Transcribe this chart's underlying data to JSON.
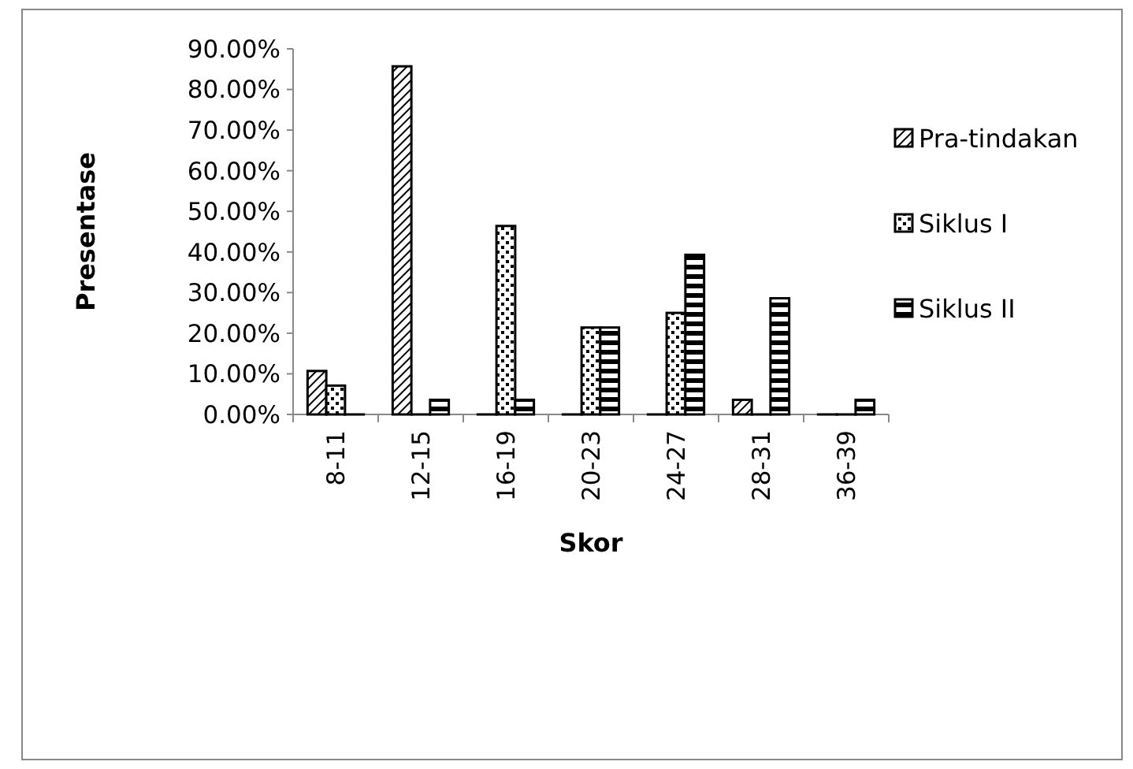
{
  "chart_data": {
    "type": "bar",
    "xlabel": "Skor",
    "ylabel": "Presentase",
    "categories": [
      "8-11",
      "12-15",
      "16-19",
      "20-23",
      "24-27",
      "28-31",
      "36-39"
    ],
    "series": [
      {
        "name": "Pra-tindakan",
        "color": "#000000",
        "values": [
          10.7,
          85.7,
          0,
          0,
          0,
          3.6,
          0
        ]
      },
      {
        "name": "Siklus I",
        "color": "#000000",
        "values": [
          7.1,
          0,
          46.4,
          21.4,
          25,
          0,
          0
        ]
      },
      {
        "name": "Siklus II",
        "color": "#000000",
        "values": [
          0,
          3.6,
          3.6,
          21.4,
          39.3,
          28.6,
          3.6
        ]
      }
    ],
    "ylim": [
      0,
      90
    ],
    "yticks": [
      {
        "value": 0,
        "label": "0.00%"
      },
      {
        "value": 10,
        "label": "10.00%"
      },
      {
        "value": 20,
        "label": "20.00%"
      },
      {
        "value": 30,
        "label": "30.00%"
      },
      {
        "value": 40,
        "label": "40.00%"
      },
      {
        "value": 50,
        "label": "50.00%"
      },
      {
        "value": 60,
        "label": "60.00%"
      },
      {
        "value": 70,
        "label": "70.00%"
      },
      {
        "value": 80,
        "label": "80.00%"
      },
      {
        "value": 90,
        "label": "90.00%"
      }
    ],
    "grid": false,
    "legend": "right"
  }
}
